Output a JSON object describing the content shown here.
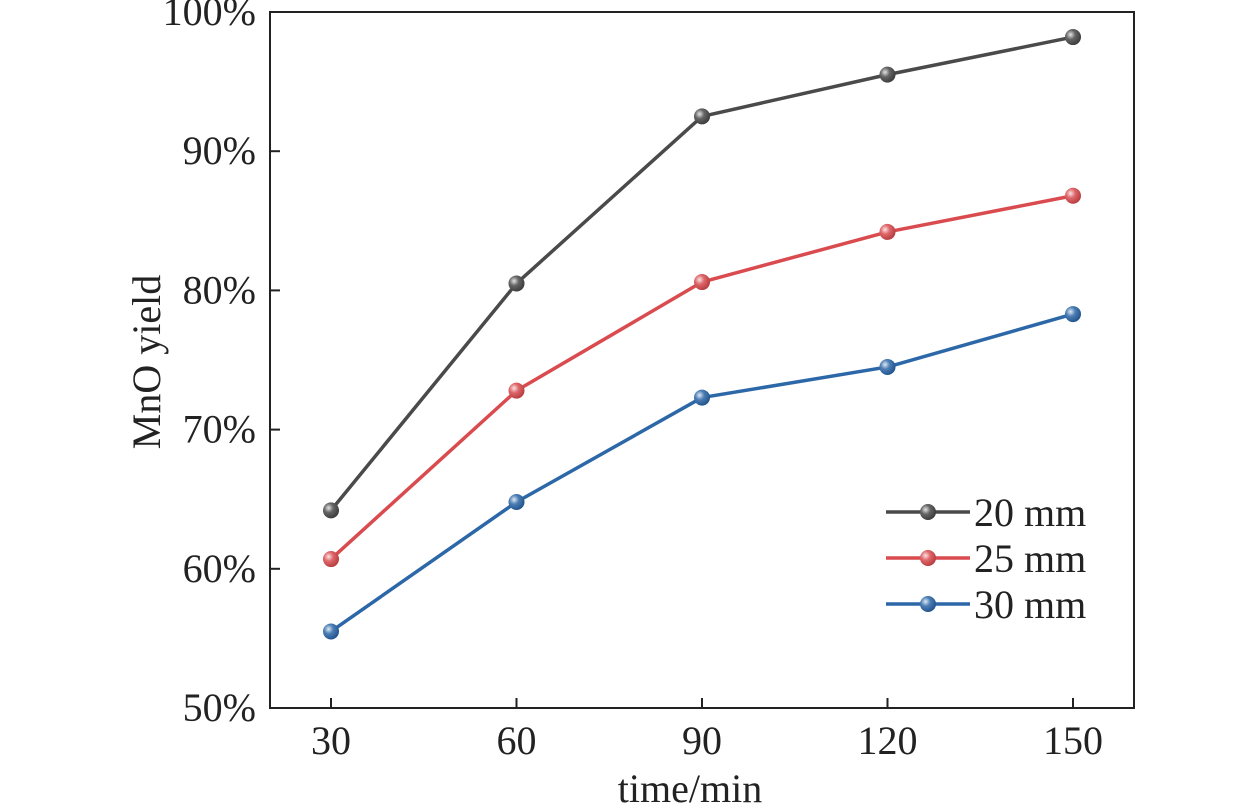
{
  "chart_data": {
    "type": "line",
    "title": "",
    "xlabel": "time/min",
    "ylabel": "MnO yield",
    "x": [
      30,
      60,
      90,
      120,
      150
    ],
    "x_tick_labels": [
      "30",
      "60",
      "90",
      "120",
      "150"
    ],
    "xlim": [
      20,
      160
    ],
    "ylim": [
      50,
      100
    ],
    "y_ticks": [
      50,
      60,
      70,
      80,
      90,
      100
    ],
    "y_tick_labels": [
      "50%",
      "60%",
      "70%",
      "80%",
      "90%",
      "100%"
    ],
    "grid": false,
    "legend_position": "bottom-right",
    "series": [
      {
        "name": "20 mm",
        "color": "#4a4a4a",
        "values": [
          64.2,
          80.5,
          92.5,
          95.5,
          98.2
        ]
      },
      {
        "name": "25 mm",
        "color": "#d94b4f",
        "values": [
          60.7,
          72.8,
          80.6,
          84.2,
          86.8
        ]
      },
      {
        "name": "30 mm",
        "color": "#2c67a8",
        "values": [
          55.5,
          64.8,
          72.3,
          74.5,
          78.3
        ]
      }
    ]
  }
}
